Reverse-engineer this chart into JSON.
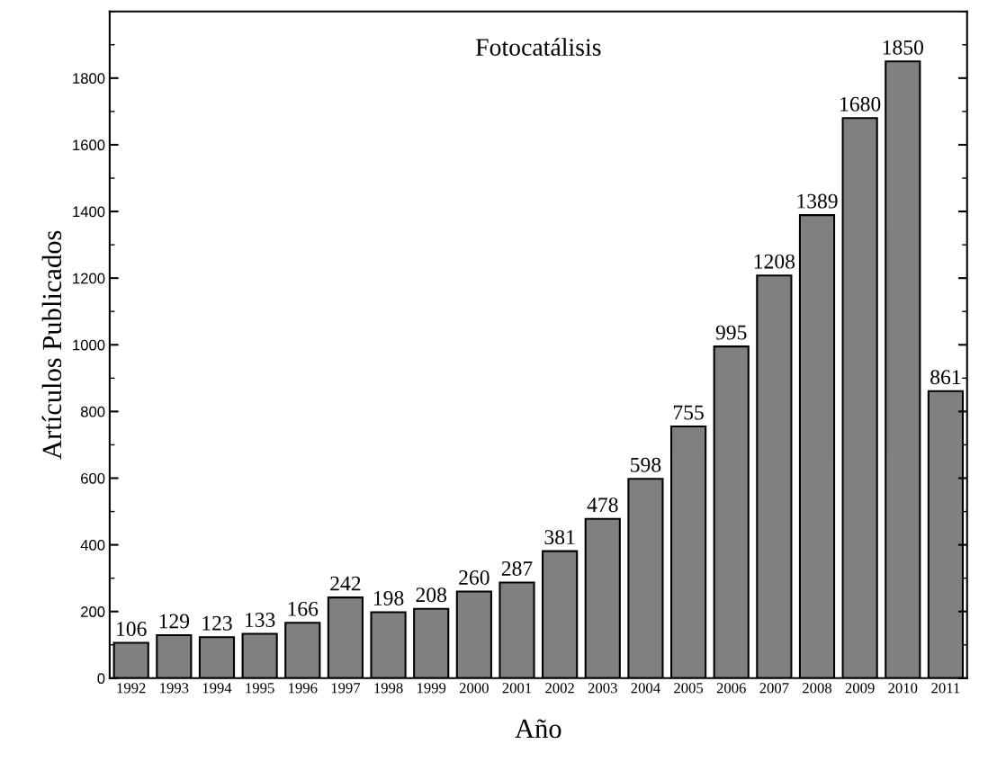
{
  "chart_data": {
    "type": "bar",
    "title": "Fotocatálisis",
    "xlabel": "Año",
    "ylabel": "Artículos Publicados",
    "categories": [
      "1992",
      "1993",
      "1994",
      "1995",
      "1996",
      "1997",
      "1998",
      "1999",
      "2000",
      "2001",
      "2002",
      "2003",
      "2004",
      "2005",
      "2006",
      "2007",
      "2008",
      "2009",
      "2010",
      "2011"
    ],
    "values": [
      106,
      129,
      123,
      133,
      166,
      242,
      198,
      208,
      260,
      287,
      381,
      478,
      598,
      755,
      995,
      1208,
      1389,
      1680,
      1850,
      861
    ],
    "color": "#808080",
    "ylim": [
      0,
      2000
    ],
    "yticks": [
      0,
      200,
      400,
      600,
      800,
      1000,
      1200,
      1400,
      1600,
      1800
    ],
    "data_labels": true,
    "grid": false,
    "legend": false
  }
}
